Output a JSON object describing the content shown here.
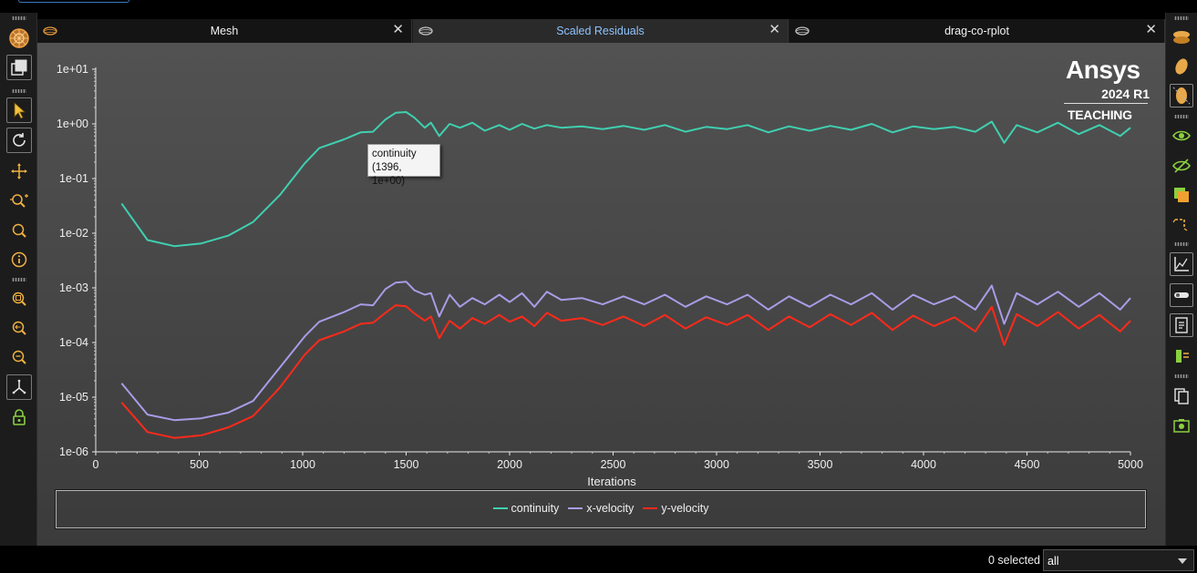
{
  "tabs": [
    {
      "label": "Mesh",
      "active": false
    },
    {
      "label": "Scaled Residuals",
      "active": true
    },
    {
      "label": "drag-co-rplot",
      "active": false
    }
  ],
  "tab_close_glyph": "✕",
  "logo": {
    "brand": "Ansys",
    "version": "2024 R1",
    "edition": "TEACHING"
  },
  "tooltip": {
    "series": "continuity",
    "coords": "(1396, 1e+00)"
  },
  "status": {
    "selected_text": "0 selected",
    "filter_value": "all"
  },
  "colors": {
    "continuity": "#3fd0b0",
    "x-velocity": "#a99ce6",
    "y-velocity": "#ff2a1a",
    "accent_tab": "#8ec3ff"
  },
  "left_toolbar_icons": [
    "mesh-display-icon",
    "views-icon",
    "select-pointer-icon",
    "rotate-icon",
    "pan-icon",
    "zoom-in-out-icon",
    "zoom-icon",
    "probe-info-icon",
    "zoom-to-fit-icon",
    "zoom-previous-icon",
    "zoom-out-icon",
    "axes-triad-icon",
    "lock-icon"
  ],
  "right_toolbar_icons": [
    "display-orientation-icon",
    "lighting-icon",
    "shading-icon",
    "visibility-icon",
    "hide-icon",
    "layers-icon",
    "clip-icon",
    "plot-axes-icon",
    "toggle-icon",
    "report-icon",
    "graphics-options-icon",
    "copy-icon",
    "snapshot-icon"
  ],
  "chart_data": {
    "type": "line",
    "xlabel": "Iterations",
    "ylabel": "",
    "y_scale": "log",
    "xlim": [
      0,
      5000
    ],
    "ylim": [
      1e-06,
      10
    ],
    "x_ticks": [
      "0",
      "500",
      "1000",
      "1500",
      "2000",
      "2500",
      "3000",
      "3500",
      "4000",
      "4500",
      "5000"
    ],
    "y_ticks": [
      "1e+01",
      "1e+00",
      "1e-01",
      "1e-02",
      "1e-03",
      "1e-04",
      "1e-05",
      "1e-06"
    ],
    "legend_position": "bottom",
    "series": [
      {
        "name": "continuity",
        "x": [
          125,
          250,
          380,
          510,
          640,
          760,
          890,
          1010,
          1080,
          1200,
          1280,
          1340,
          1400,
          1450,
          1500,
          1540,
          1590,
          1620,
          1660,
          1710,
          1760,
          1820,
          1880,
          1950,
          2000,
          2060,
          2120,
          2180,
          2250,
          2350,
          2450,
          2550,
          2650,
          2750,
          2850,
          2950,
          3050,
          3150,
          3250,
          3350,
          3450,
          3550,
          3650,
          3750,
          3850,
          3950,
          4050,
          4150,
          4250,
          4330,
          4390,
          4450,
          4550,
          4650,
          4750,
          4850,
          4950,
          5000
        ],
        "values": [
          0.035,
          0.0075,
          0.0058,
          0.0065,
          0.009,
          0.016,
          0.05,
          0.19,
          0.36,
          0.52,
          0.7,
          0.72,
          1.2,
          1.6,
          1.65,
          1.3,
          0.85,
          1.05,
          0.6,
          1.0,
          0.85,
          1.05,
          0.75,
          0.95,
          0.78,
          1.0,
          0.82,
          0.95,
          0.85,
          0.9,
          0.8,
          0.92,
          0.78,
          0.95,
          0.72,
          0.88,
          0.8,
          0.95,
          0.7,
          0.9,
          0.75,
          0.92,
          0.78,
          1.0,
          0.7,
          0.9,
          0.8,
          0.88,
          0.72,
          1.1,
          0.45,
          0.95,
          0.7,
          1.05,
          0.65,
          0.95,
          0.6,
          0.85
        ]
      },
      {
        "name": "x-velocity",
        "x": [
          125,
          250,
          380,
          510,
          640,
          760,
          890,
          1010,
          1080,
          1200,
          1280,
          1340,
          1400,
          1450,
          1500,
          1540,
          1590,
          1620,
          1660,
          1710,
          1760,
          1820,
          1880,
          1950,
          2000,
          2060,
          2120,
          2180,
          2250,
          2350,
          2450,
          2550,
          2650,
          2750,
          2850,
          2950,
          3050,
          3150,
          3250,
          3350,
          3450,
          3550,
          3650,
          3750,
          3850,
          3950,
          4050,
          4150,
          4250,
          4330,
          4390,
          4450,
          4550,
          4650,
          4750,
          4850,
          4950,
          5000
        ],
        "values": [
          1.8e-05,
          4.8e-06,
          3.8e-06,
          4.1e-06,
          5.2e-06,
          8.5e-06,
          3.5e-05,
          0.00013,
          0.00024,
          0.00036,
          0.0005,
          0.00048,
          0.00095,
          0.00125,
          0.0013,
          0.0009,
          0.00075,
          0.0008,
          0.0003,
          0.00075,
          0.00045,
          0.00065,
          0.0005,
          0.00075,
          0.00055,
          0.0008,
          0.00045,
          0.00085,
          0.0006,
          0.00065,
          0.0005,
          0.0007,
          0.0005,
          0.00075,
          0.00045,
          0.0007,
          0.0005,
          0.00075,
          0.0004,
          0.0007,
          0.00045,
          0.00075,
          0.0005,
          0.0008,
          0.0004,
          0.00075,
          0.0005,
          0.0007,
          0.0004,
          0.0011,
          0.00022,
          0.0008,
          0.0005,
          0.00085,
          0.00045,
          0.0008,
          0.0004,
          0.00065
        ]
      },
      {
        "name": "y-velocity",
        "x": [
          125,
          250,
          380,
          510,
          640,
          760,
          890,
          1010,
          1080,
          1200,
          1280,
          1340,
          1400,
          1450,
          1500,
          1540,
          1590,
          1620,
          1660,
          1710,
          1760,
          1820,
          1880,
          1950,
          2000,
          2060,
          2120,
          2180,
          2250,
          2350,
          2450,
          2550,
          2650,
          2750,
          2850,
          2950,
          3050,
          3150,
          3250,
          3350,
          3450,
          3550,
          3650,
          3750,
          3850,
          3950,
          4050,
          4150,
          4250,
          4330,
          4390,
          4450,
          4550,
          4650,
          4750,
          4850,
          4950,
          5000
        ],
        "values": [
          8e-06,
          2.3e-06,
          1.8e-06,
          2e-06,
          2.8e-06,
          4.5e-06,
          1.5e-05,
          6e-05,
          0.00011,
          0.00016,
          0.00022,
          0.00023,
          0.00035,
          0.00048,
          0.00046,
          0.00034,
          0.00025,
          0.0003,
          0.00012,
          0.00025,
          0.00018,
          0.00028,
          0.00022,
          0.00032,
          0.00024,
          0.0003,
          0.0002,
          0.00035,
          0.00025,
          0.00028,
          0.00021,
          0.0003,
          0.0002,
          0.00032,
          0.00018,
          0.00029,
          0.00021,
          0.00032,
          0.00017,
          0.0003,
          0.00019,
          0.00033,
          0.00021,
          0.00035,
          0.00017,
          0.00031,
          0.0002,
          0.00029,
          0.00016,
          0.00045,
          9e-05,
          0.00033,
          0.0002,
          0.00036,
          0.00018,
          0.00032,
          0.00016,
          0.00025
        ]
      }
    ]
  }
}
